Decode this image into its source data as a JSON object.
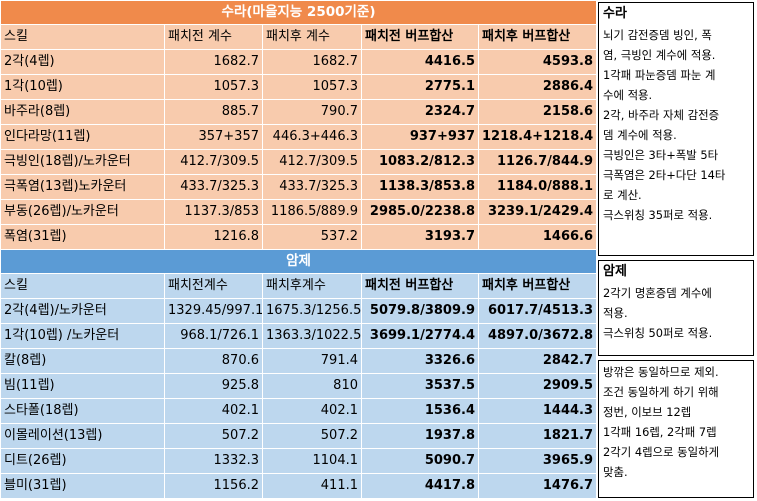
{
  "sura": {
    "title": "수라(마을지능 2500기준)",
    "headers": [
      "스킬",
      "패치전 계수",
      "패치후 계수",
      "패치전 버프합산",
      "패치후 버프합산"
    ],
    "rows": [
      [
        "2각(4렙)",
        "1682.7",
        "1682.7",
        "4416.5",
        "4593.8"
      ],
      [
        "1각(10렙)",
        "1057.3",
        "1057.3",
        "2775.1",
        "2886.4"
      ],
      [
        "바주라(8렙)",
        "885.7",
        "790.7",
        "2324.7",
        "2158.6"
      ],
      [
        "인다라망(11렙)",
        "357+357",
        "446.3+446.3",
        "937+937",
        "1218.4+1218.4"
      ],
      [
        "극빙인(18렙)/노카운터",
        "412.7/309.5",
        "412.7/309.5",
        "1083.2/812.3",
        "1126.7/844.9"
      ],
      [
        "극폭염(13렙)노카운터",
        "433.7/325.3",
        "433.7/325.3",
        "1138.3/853.8",
        "1184.0/888.1"
      ],
      [
        "부동(26렙)/노카운터",
        "1137.3/853",
        "1186.5/889.9",
        "2985.0/2238.8",
        "3239.1/2429.4"
      ],
      [
        "폭염(31렙)",
        "1216.8",
        "537.2",
        "3193.7",
        "1466.6"
      ]
    ]
  },
  "amje": {
    "title": "암제",
    "headers": [
      "스킬",
      "패치전계수",
      "패치후계수",
      "패치전 버프합산",
      "패치후 버프합산"
    ],
    "rows": [
      [
        "2각(4렙)/노카운터",
        "1329.45/997.1",
        "1675.3/1256.5",
        "5079.8/3809.9",
        "6017.7/4513.3"
      ],
      [
        "1각(10렙) /노카운터",
        "968.1/726.1",
        "1363.3/1022.5",
        "3699.1/2774.4",
        "4897.0/3672.8"
      ],
      [
        "칼(8렙)",
        "870.6",
        "791.4",
        "3326.6",
        "2842.7"
      ],
      [
        "빔(11렙)",
        "925.8",
        "810",
        "3537.5",
        "2909.5"
      ],
      [
        "스타폴(18렙)",
        "402.1",
        "402.1",
        "1536.4",
        "1444.3"
      ],
      [
        "이몰레이션(13렙)",
        "507.2",
        "507.2",
        "1937.8",
        "1821.7"
      ],
      [
        "디트(26렙)",
        "1332.3",
        "1104.1",
        "5090.7",
        "3965.9"
      ],
      [
        "블미(31렙)",
        "1156.2",
        "411.1",
        "4417.8",
        "1476.7"
      ]
    ]
  },
  "notes": {
    "sura": {
      "title": "수라",
      "lines": [
        "뇌기 감전증뎀 빙인, 폭",
        "염, 극빙인 계수에 적용.",
        "1각패 파눈증뎀 파눈 계",
        "수에 적용.",
        "2각, 바주라 자체 감전증",
        "뎀 계수에 적용.",
        "극빙인은 3타+폭발 5타",
        "극폭염은 2타+다단 14타",
        "로 계산.",
        "극스위칭 35퍼로 적용."
      ]
    },
    "amje": {
      "title": "암제",
      "lines": [
        "2각기 명혼증뎀 계수에",
        "적용.",
        "극스위칭 50퍼로 적용."
      ]
    },
    "common": {
      "lines": [
        "방깎은 동일하므로 제외.",
        "조건 동일하게 하기 위해",
        "정번, 이보브 12렙",
        "1각패 16렙, 2각패 7렙",
        "2각기 4렙으로 동일하게",
        "맞춤."
      ]
    }
  }
}
